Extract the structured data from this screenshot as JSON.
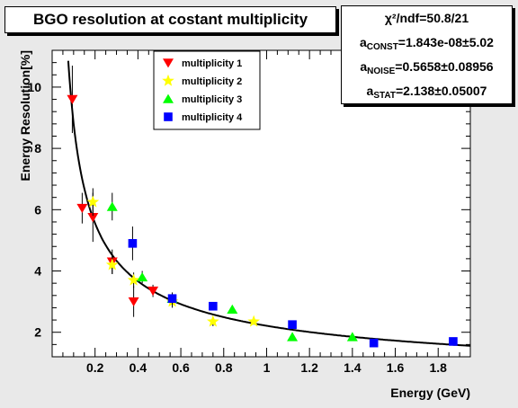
{
  "title": "BGO resolution at costant multiplicity",
  "stats": {
    "chi2_label": "χ²/ndf",
    "chi2_value": "50.8/21",
    "const_label": "a",
    "const_sub": "CONST",
    "const_value": "1.843e-08±5.02",
    "noise_label": "a",
    "noise_sub": "NOISE",
    "noise_value": "0.5658±0.08956",
    "stat_label": "a",
    "stat_sub": "STAT",
    "stat_value": "2.138±0.05007"
  },
  "chart_data": {
    "type": "scatter",
    "xlabel": "Energy (GeV)",
    "ylabel": "Energy Resolution[%]",
    "xlim": [
      0,
      1.95
    ],
    "ylim": [
      1.2,
      11.2
    ],
    "xticks": [
      0.2,
      0.4,
      0.6,
      0.8,
      1,
      1.2,
      1.4,
      1.6,
      1.8
    ],
    "yticks": [
      2,
      4,
      6,
      8,
      10
    ],
    "legend_position": "top-center",
    "series": [
      {
        "name": "multiplicity 1",
        "marker": "triangle-down",
        "color": "#ff0000",
        "points": [
          {
            "x": 0.094,
            "y": 9.6,
            "err": 1.1
          },
          {
            "x": 0.14,
            "y": 6.05,
            "err": 0.5
          },
          {
            "x": 0.19,
            "y": 5.75,
            "err": 0.8
          },
          {
            "x": 0.28,
            "y": 4.3,
            "err": 0.4
          },
          {
            "x": 0.38,
            "y": 3.0,
            "err": 0.5
          },
          {
            "x": 0.47,
            "y": 3.35,
            "err": 0.2
          }
        ]
      },
      {
        "name": "multiplicity 2",
        "marker": "star",
        "color": "#ffff00",
        "points": [
          {
            "x": 0.19,
            "y": 6.25,
            "err": 0.45
          },
          {
            "x": 0.28,
            "y": 4.2,
            "err": 0.3
          },
          {
            "x": 0.38,
            "y": 3.7,
            "err": 0.25
          },
          {
            "x": 0.56,
            "y": 3.0,
            "err": 0.2
          },
          {
            "x": 0.75,
            "y": 2.35,
            "err": 0.15
          },
          {
            "x": 0.94,
            "y": 2.35,
            "err": 0.1
          }
        ]
      },
      {
        "name": "multiplicity 3",
        "marker": "triangle-up",
        "color": "#00ff00",
        "points": [
          {
            "x": 0.28,
            "y": 6.1,
            "err": 0.45
          },
          {
            "x": 0.42,
            "y": 3.8,
            "err": 0.2
          },
          {
            "x": 0.56,
            "y": 3.1,
            "err": 0.15
          },
          {
            "x": 0.84,
            "y": 2.75,
            "err": 0.1
          },
          {
            "x": 1.12,
            "y": 1.85,
            "err": 0.08
          },
          {
            "x": 1.4,
            "y": 1.85,
            "err": 0.05
          }
        ]
      },
      {
        "name": "multiplicity 4",
        "marker": "square",
        "color": "#0000ff",
        "points": [
          {
            "x": 0.375,
            "y": 4.9,
            "err": 0.55
          },
          {
            "x": 0.56,
            "y": 3.1,
            "err": 0.2
          },
          {
            "x": 0.75,
            "y": 2.85,
            "err": 0.12
          },
          {
            "x": 1.12,
            "y": 2.25,
            "err": 0.08
          },
          {
            "x": 1.5,
            "y": 1.65,
            "err": 0.06
          },
          {
            "x": 1.87,
            "y": 1.7,
            "err": 0.1
          }
        ]
      }
    ],
    "fit": {
      "a_const": 1.843e-08,
      "a_noise": 0.5658,
      "a_stat": 2.138
    }
  }
}
